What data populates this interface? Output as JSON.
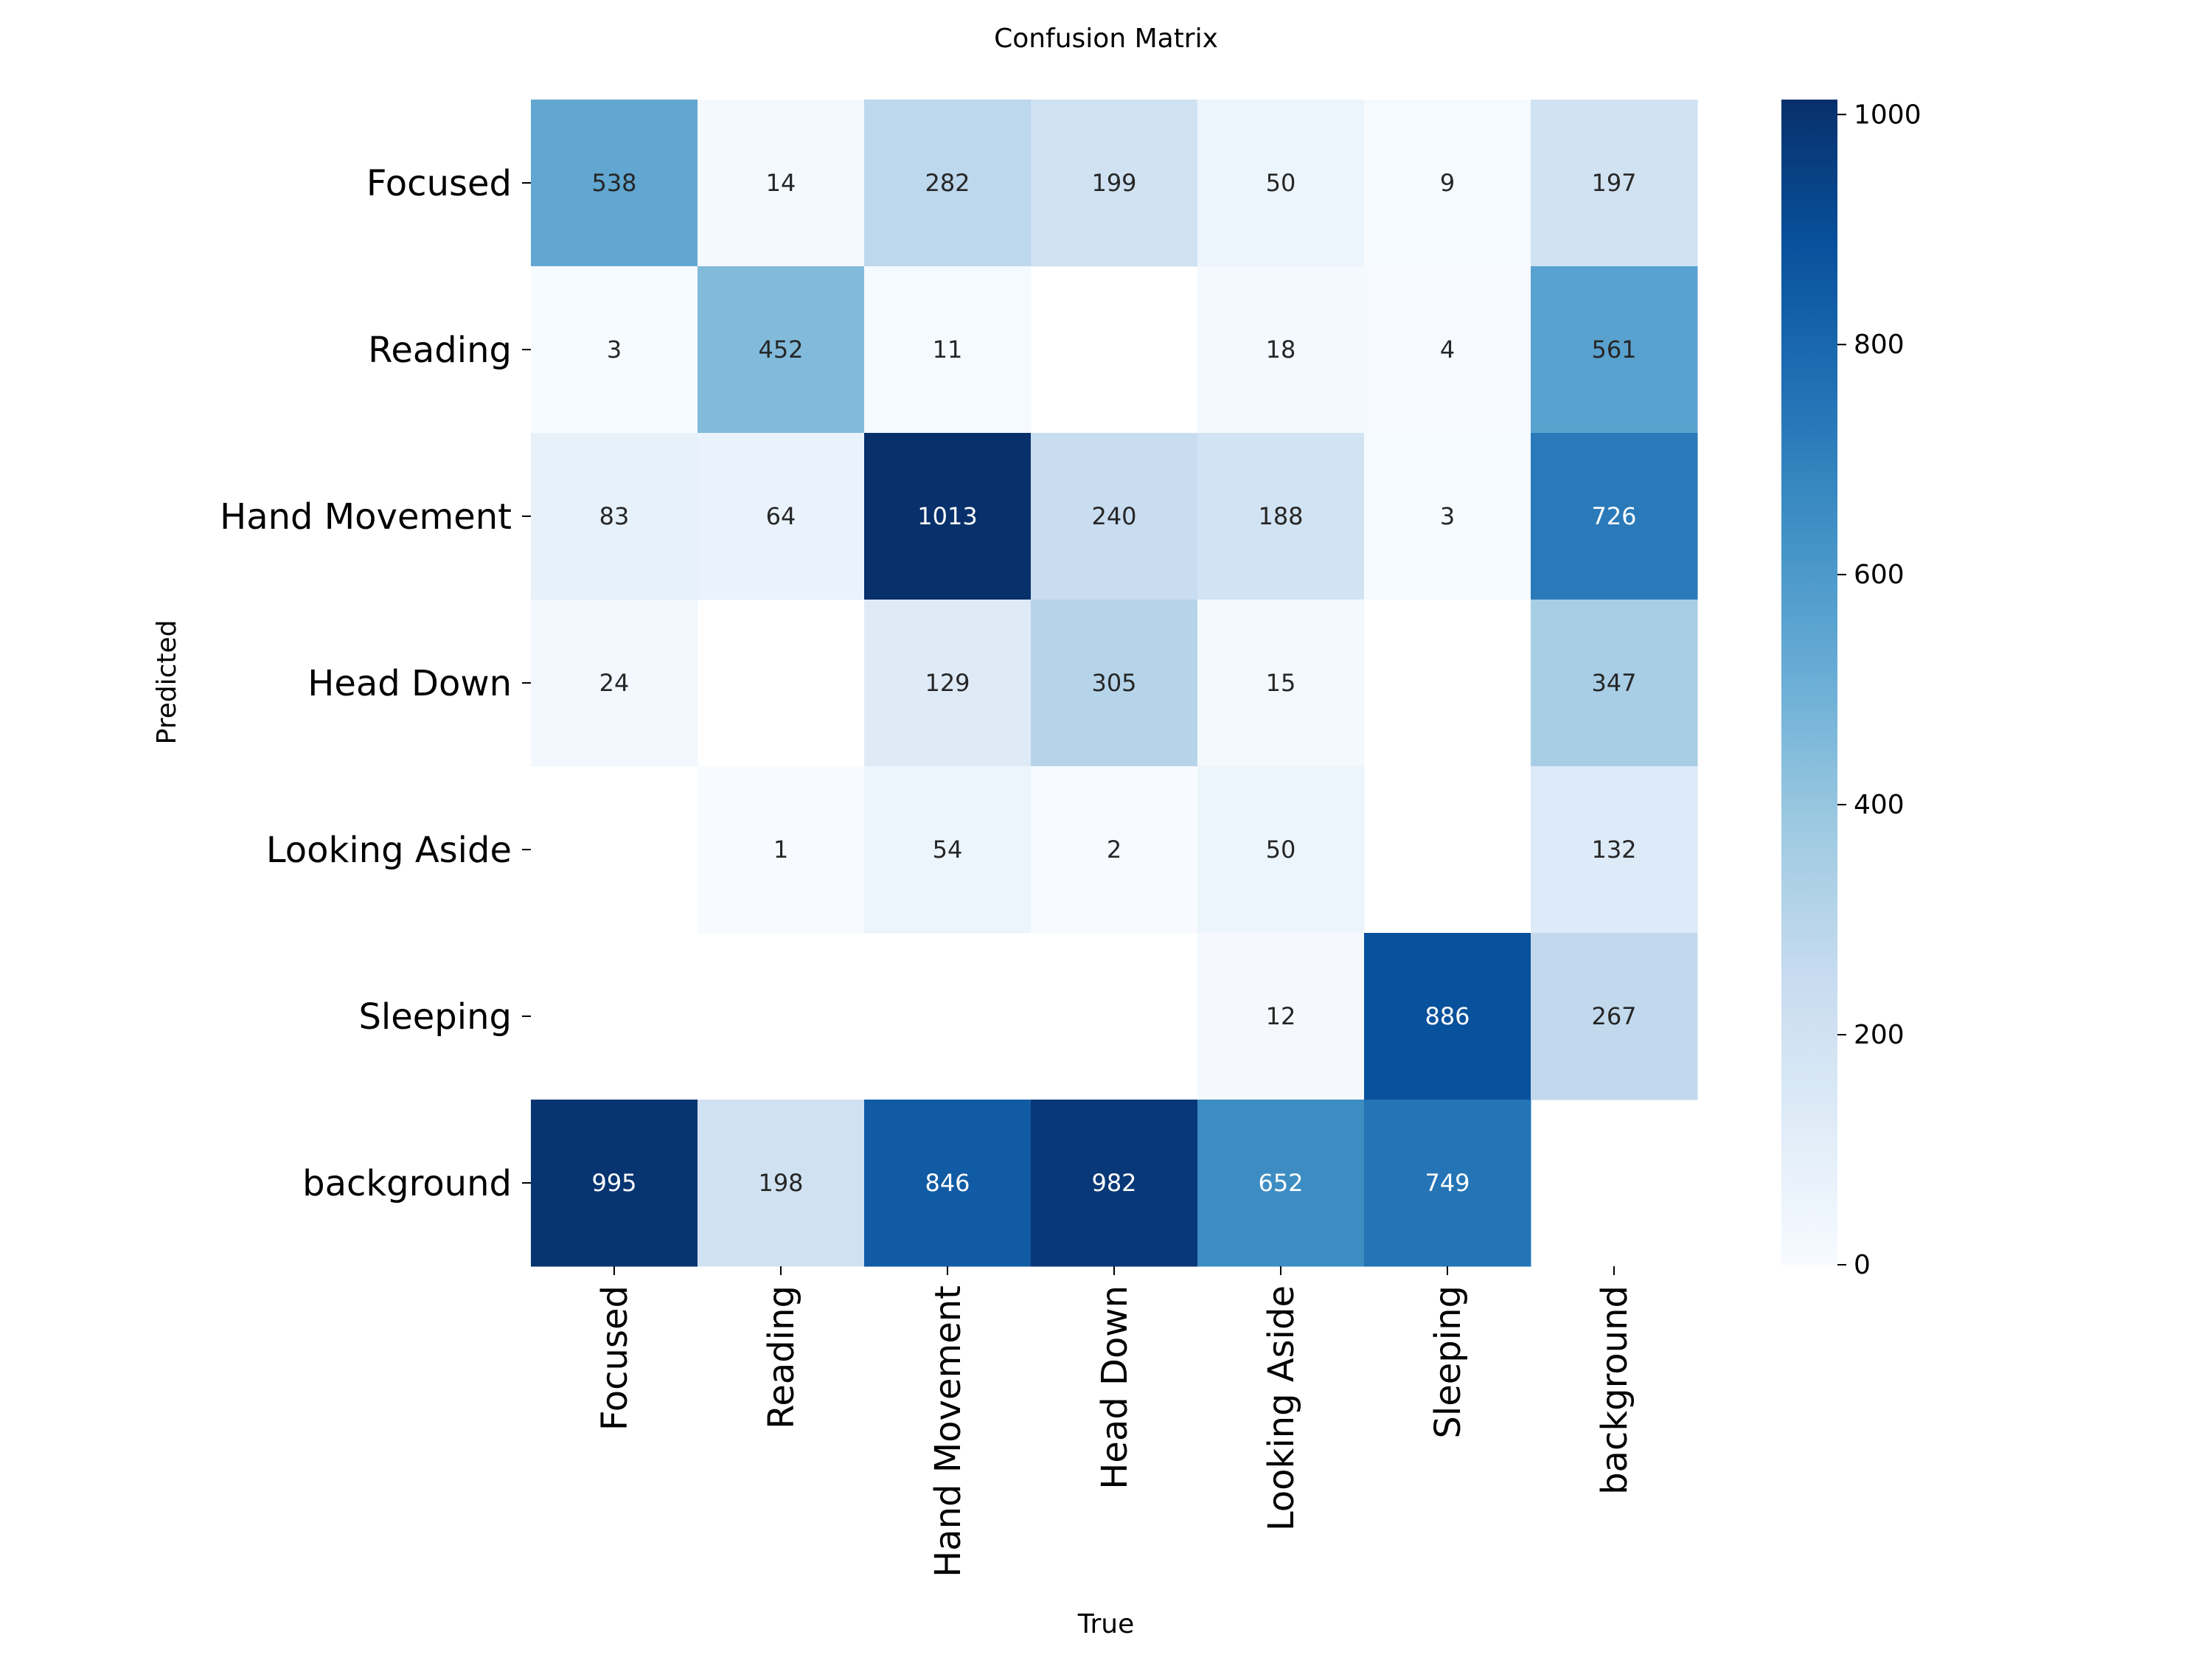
{
  "chart_data": {
    "type": "heatmap",
    "title": "Confusion Matrix",
    "xlabel": "True",
    "ylabel": "Predicted",
    "x_categories": [
      "Focused",
      "Reading",
      "Hand Movement",
      "Head Down",
      "Looking Aside",
      "Sleeping",
      "background"
    ],
    "y_categories": [
      "Focused",
      "Reading",
      "Hand Movement",
      "Head Down",
      "Looking Aside",
      "Sleeping",
      "background"
    ],
    "values": [
      [
        538,
        14,
        282,
        199,
        50,
        9,
        197
      ],
      [
        3,
        452,
        11,
        null,
        18,
        4,
        561
      ],
      [
        83,
        64,
        1013,
        240,
        188,
        3,
        726
      ],
      [
        24,
        null,
        129,
        305,
        15,
        null,
        347
      ],
      [
        null,
        1,
        54,
        2,
        50,
        null,
        132
      ],
      [
        null,
        null,
        null,
        null,
        12,
        886,
        267
      ],
      [
        995,
        198,
        846,
        982,
        652,
        749,
        null
      ]
    ],
    "colormap": "Blues",
    "color_range": [
      0,
      1013
    ],
    "colorbar_ticks": [
      0,
      200,
      400,
      600,
      800,
      1000
    ],
    "grid": false,
    "colorbar_position": "right"
  }
}
